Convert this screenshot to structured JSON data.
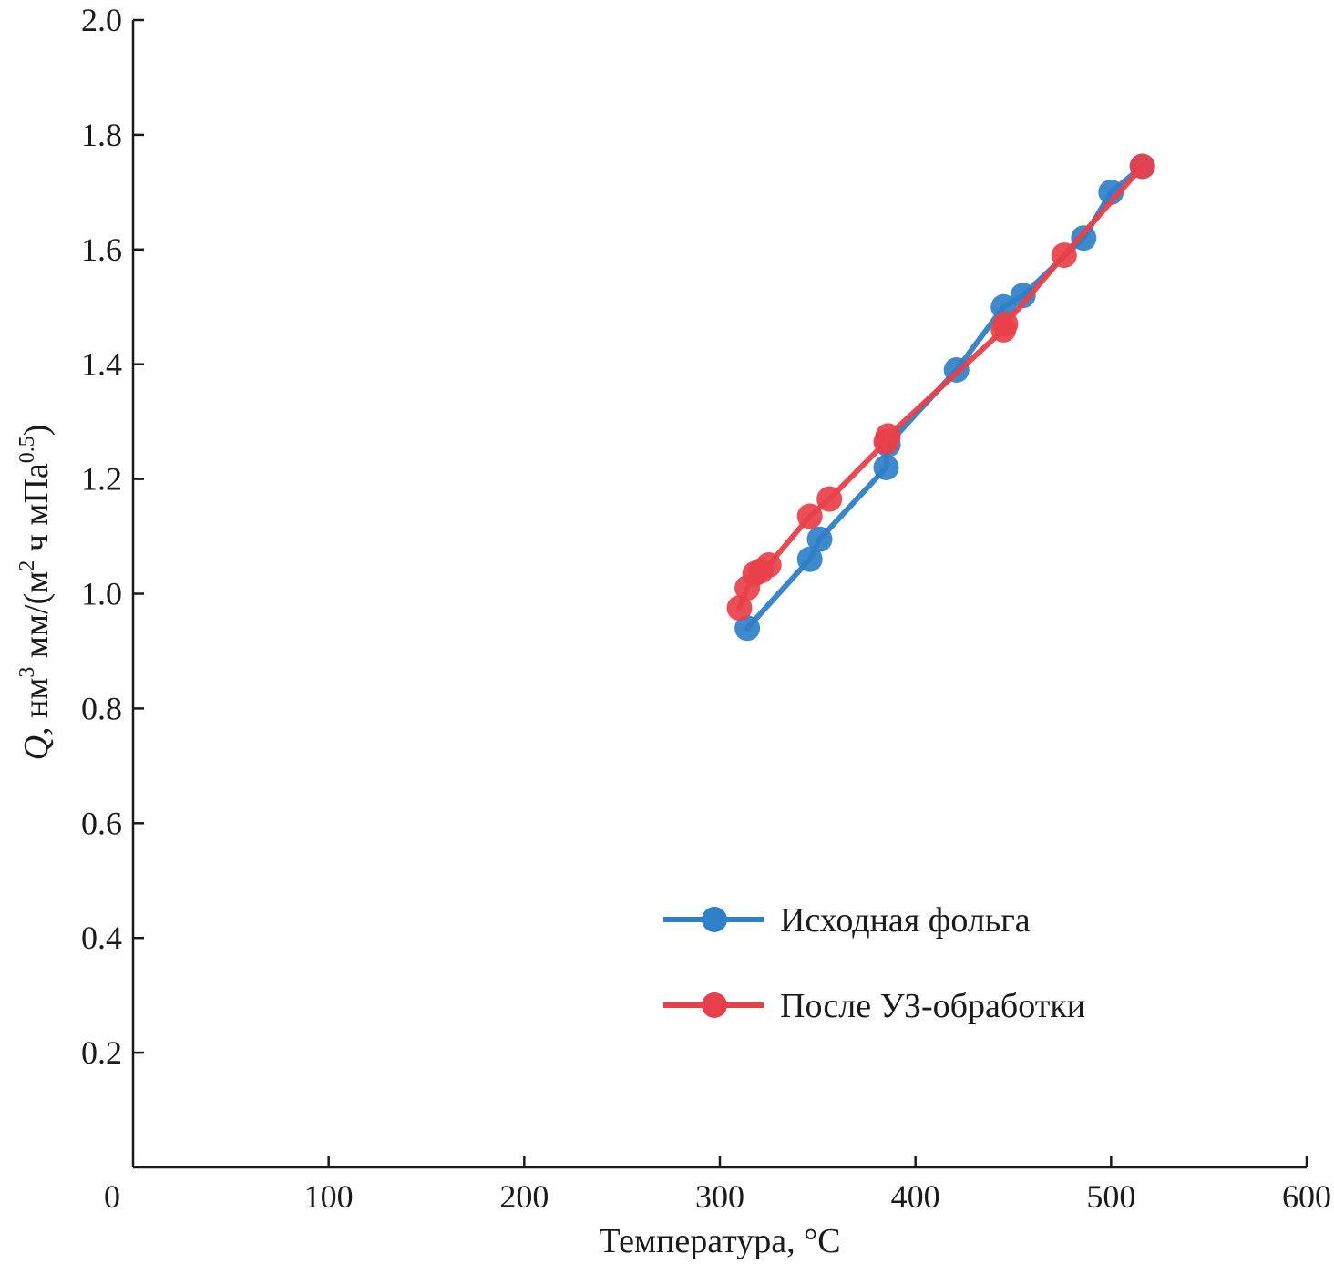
{
  "chart_data": {
    "type": "line",
    "xlabel": "Температура, °C",
    "ylabel": {
      "symbol": "Q",
      "part1": ", нм",
      "sup1": "3",
      "part2": " мм/(м",
      "sup2": "2",
      "part3": " ч мПа",
      "sup3": "0.5",
      "part4": ")"
    },
    "xlim": [
      0,
      600
    ],
    "ylim": [
      0,
      2.0
    ],
    "x_ticks": [
      "0",
      "100",
      "200",
      "300",
      "400",
      "500",
      "600"
    ],
    "y_ticks": [
      "0.2",
      "0.4",
      "0.6",
      "0.8",
      "1.0",
      "1.2",
      "1.4",
      "1.6",
      "1.8",
      "2.0"
    ],
    "legend_position": "lower-right",
    "series": [
      {
        "name": "Исходная фольга",
        "color": "#2f80c8",
        "points": [
          [
            314,
            0.94
          ],
          [
            346,
            1.06
          ],
          [
            351,
            1.095
          ],
          [
            385,
            1.22
          ],
          [
            386,
            1.26
          ],
          [
            421,
            1.39
          ],
          [
            445,
            1.5
          ],
          [
            455,
            1.52
          ],
          [
            486,
            1.62
          ],
          [
            500,
            1.7
          ],
          [
            516,
            1.745
          ]
        ]
      },
      {
        "name": "После УЗ-обработки",
        "color": "#e8404a",
        "points": [
          [
            310,
            0.975
          ],
          [
            314,
            1.01
          ],
          [
            318,
            1.035
          ],
          [
            321,
            1.04
          ],
          [
            325,
            1.05
          ],
          [
            346,
            1.135
          ],
          [
            356,
            1.165
          ],
          [
            385,
            1.265
          ],
          [
            386,
            1.275
          ],
          [
            445,
            1.46
          ],
          [
            446,
            1.47
          ],
          [
            476,
            1.59
          ],
          [
            516,
            1.745
          ]
        ]
      }
    ]
  }
}
